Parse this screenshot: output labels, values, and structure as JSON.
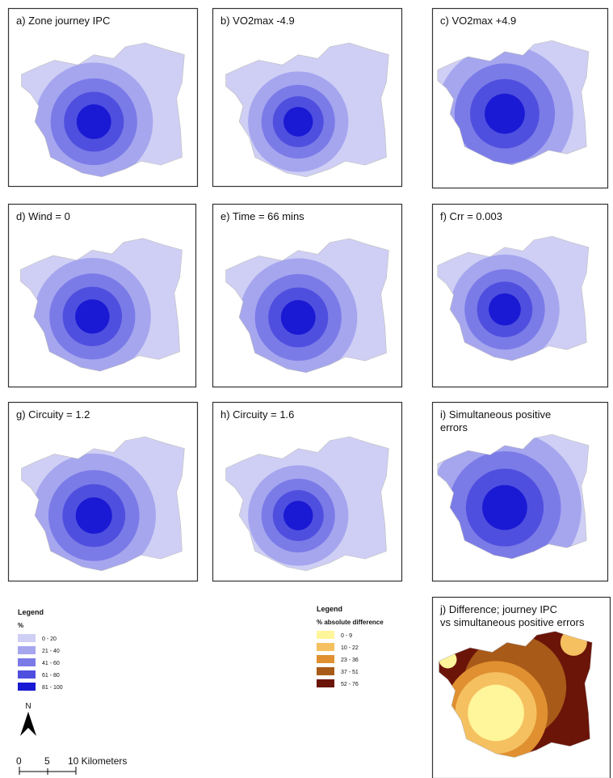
{
  "panels": [
    {
      "label": [
        "a) Zone journey IPC"
      ]
    },
    {
      "label": [
        "b) VO2max -4.9"
      ]
    },
    {
      "label": [
        "c) VO2max +4.9"
      ]
    },
    {
      "label": [
        "d) Wind = 0"
      ]
    },
    {
      "label": [
        "e) Time = 66 mins"
      ]
    },
    {
      "label": [
        "f) Crr = 0.003"
      ]
    },
    {
      "label": [
        "g) Circuity = 1.2"
      ]
    },
    {
      "label": [
        "h) Circuity = 1.6"
      ]
    },
    {
      "label": [
        "i) Simultaneous positive",
        "errors"
      ]
    },
    {
      "label": [
        "j) Difference; journey IPC",
        "vs simultaneous positive errors"
      ]
    }
  ],
  "legend_ipc": {
    "title": "Legend",
    "subtitle": "%",
    "items": [
      "0 - 20",
      "21 - 40",
      "41 - 60",
      "61 - 80",
      "81 - 100"
    ]
  },
  "legend_diff": {
    "title": "Legend",
    "subtitle": "% absolute difference",
    "items": [
      "0 - 9",
      "10 - 22",
      "23 - 36",
      "37 - 51",
      "52 - 76"
    ]
  },
  "north": "N",
  "scale_bar": [
    "0",
    "5",
    "10 Kilometers"
  ]
}
